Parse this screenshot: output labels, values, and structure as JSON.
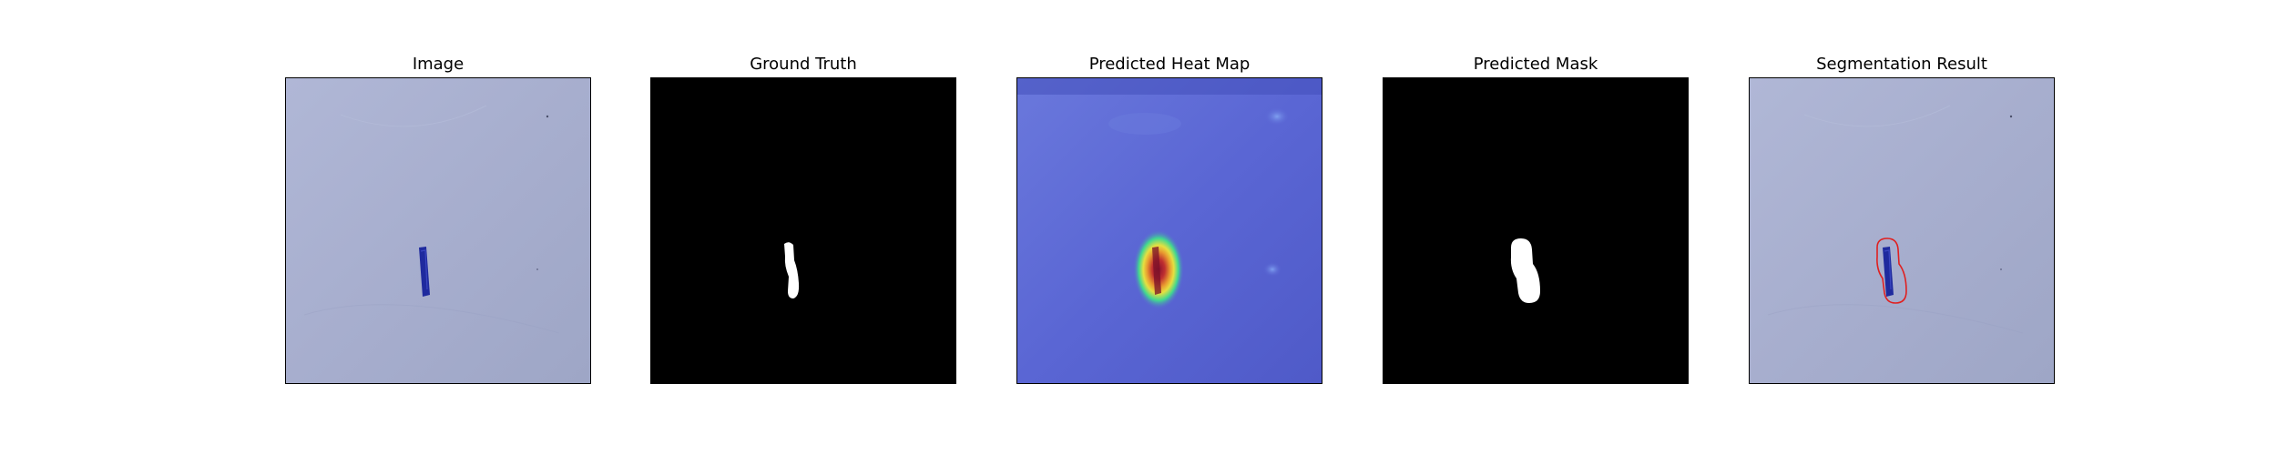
{
  "panels": [
    {
      "title": "Image"
    },
    {
      "title": "Ground Truth"
    },
    {
      "title": "Predicted Heat Map"
    },
    {
      "title": "Predicted Mask"
    },
    {
      "title": "Segmentation Result"
    }
  ],
  "colors": {
    "paper": "#a7aece",
    "defect": "#1f2a9e",
    "mask_bg": "#000000",
    "mask_fg": "#ffffff",
    "heat_base": "#5a66d4",
    "contour": "#e02020"
  }
}
